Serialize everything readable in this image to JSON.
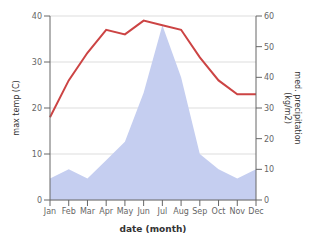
{
  "chart_data": {
    "type": "line",
    "categories": [
      "Jan",
      "Feb",
      "Mar",
      "Apr",
      "May",
      "Jun",
      "Jul",
      "Aug",
      "Sep",
      "Oct",
      "Nov",
      "Dec"
    ],
    "series": [
      {
        "type": "area",
        "color": "#c5cef0",
        "axis": "y2",
        "values": [
          7,
          10,
          7,
          13,
          19,
          35,
          57,
          40,
          15,
          10,
          7,
          10
        ]
      },
      {
        "type": "line",
        "color": "#cc4444",
        "values": [
          18,
          26,
          32,
          37,
          36,
          39,
          38,
          37,
          31,
          26,
          23,
          23
        ]
      }
    ],
    "xlabel": "date (month)",
    "ylabel": "max temp (C)",
    "y2label": "med. precipitation\n(kg/m2)",
    "ylim": [
      0,
      40
    ],
    "yticks": [
      0,
      10,
      20,
      30,
      40
    ],
    "y2lim": [
      0,
      60
    ],
    "y2ticks": [
      0,
      10,
      20,
      30,
      40,
      50,
      60
    ],
    "grid": true
  }
}
